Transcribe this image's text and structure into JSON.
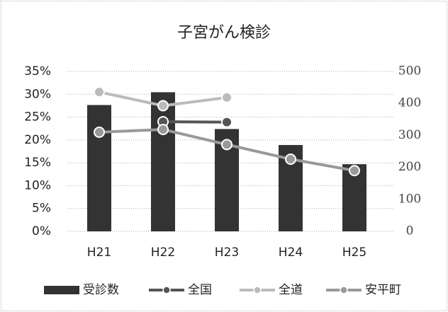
{
  "chart_data": {
    "type": "bar_line",
    "title": "子宮がん検診",
    "categories": [
      "H21",
      "H22",
      "H23",
      "H24",
      "H25"
    ],
    "series": [
      {
        "name": "受診数",
        "type": "bar",
        "color": "#333333",
        "axis": "y2",
        "values": [
          395,
          435,
          320,
          270,
          210
        ]
      },
      {
        "name": "全国",
        "type": "line",
        "color": "#555555",
        "values": [
          null,
          24.0,
          23.9,
          null,
          null
        ]
      },
      {
        "name": "全道",
        "type": "line",
        "color": "#bbbbbb",
        "values": [
          30.5,
          27.5,
          29.3,
          null,
          null
        ]
      },
      {
        "name": "安平町",
        "type": "line",
        "color": "#999999",
        "values": [
          21.7,
          22.3,
          19.0,
          15.8,
          13.3
        ]
      }
    ],
    "ylim": [
      0,
      35
    ],
    "yticks": [
      {
        "value": 0,
        "label": "0%"
      },
      {
        "value": 5,
        "label": "5%"
      },
      {
        "value": 10,
        "label": "10%"
      },
      {
        "value": 15,
        "label": "15%"
      },
      {
        "value": 20,
        "label": "20%"
      },
      {
        "value": 25,
        "label": "25%"
      },
      {
        "value": 30,
        "label": "30%"
      },
      {
        "value": 35,
        "label": "35%"
      }
    ],
    "y2lim": [
      0,
      500
    ],
    "y2ticks": [
      0,
      100,
      200,
      300,
      400,
      500
    ],
    "grid": true,
    "legend": "bottom"
  }
}
